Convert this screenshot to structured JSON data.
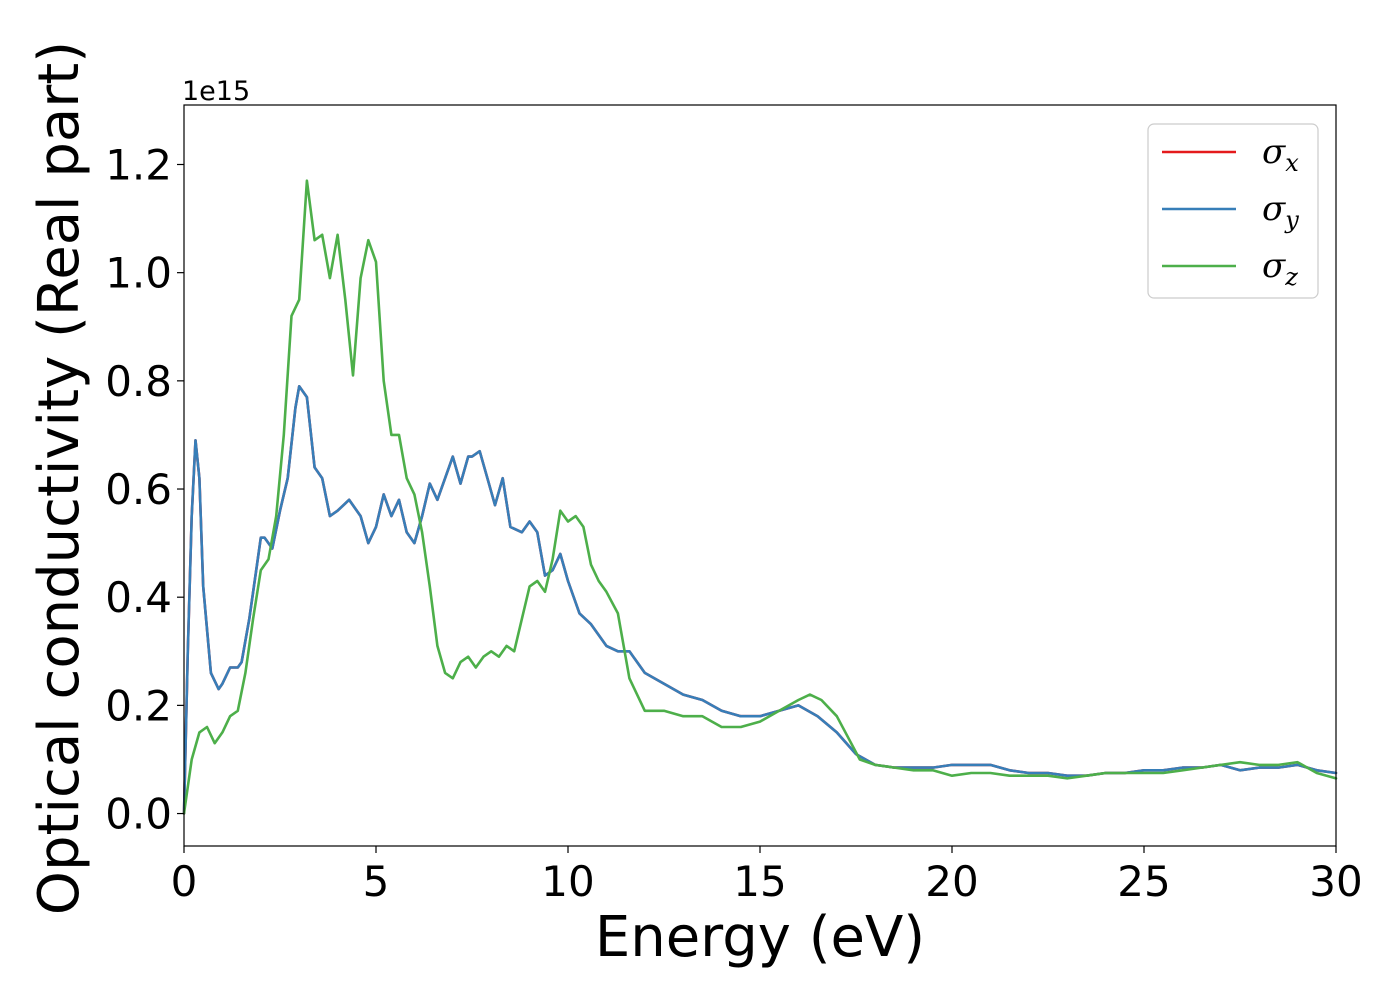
{
  "chart_data": {
    "type": "line",
    "xlabel": "Energy (eV)",
    "ylabel": "Optical conductivity (Real part)",
    "y_offset_label": "1e15",
    "xlim": [
      0,
      30
    ],
    "ylim": [
      -0.06,
      1.31
    ],
    "x_ticks": [
      0,
      5,
      10,
      15,
      20,
      25,
      30
    ],
    "x_tick_labels": [
      "0",
      "5",
      "10",
      "15",
      "20",
      "25",
      "30"
    ],
    "y_ticks": [
      0.0,
      0.2,
      0.4,
      0.6,
      0.8,
      1.0,
      1.2
    ],
    "y_tick_labels": [
      "0.0",
      "0.2",
      "0.4",
      "0.6",
      "0.8",
      "1.0",
      "1.2"
    ],
    "grid": false,
    "legend_position": "top-right",
    "series": [
      {
        "name": "σx",
        "symbol": "σ",
        "subscript": "x",
        "color": "#e41a1c",
        "x": [
          0,
          0.1,
          0.2,
          0.3,
          0.4,
          0.5,
          0.7,
          0.9,
          1.0,
          1.2,
          1.4,
          1.5,
          1.7,
          1.9,
          2.0,
          2.1,
          2.3,
          2.5,
          2.7,
          2.9,
          3.0,
          3.2,
          3.4,
          3.6,
          3.8,
          4.0,
          4.3,
          4.6,
          4.8,
          5.0,
          5.2,
          5.4,
          5.6,
          5.8,
          6.0,
          6.2,
          6.4,
          6.6,
          6.8,
          7.0,
          7.2,
          7.4,
          7.5,
          7.7,
          7.9,
          8.1,
          8.3,
          8.5,
          8.8,
          9.0,
          9.2,
          9.4,
          9.6,
          9.8,
          10.0,
          10.3,
          10.6,
          11.0,
          11.3,
          11.6,
          12.0,
          12.5,
          13.0,
          13.5,
          14.0,
          14.5,
          15.0,
          15.5,
          16.0,
          16.5,
          17.0,
          17.5,
          18.0,
          18.5,
          19.0,
          19.5,
          20.0,
          20.5,
          21.0,
          21.5,
          22.0,
          22.5,
          23.0,
          23.5,
          24.0,
          24.5,
          25.0,
          25.5,
          26.0,
          26.5,
          27.0,
          27.5,
          28.0,
          28.5,
          29.0,
          29.5,
          30.0
        ],
        "values": [
          0.0,
          0.3,
          0.55,
          0.69,
          0.62,
          0.42,
          0.26,
          0.23,
          0.24,
          0.27,
          0.27,
          0.28,
          0.36,
          0.46,
          0.51,
          0.51,
          0.49,
          0.56,
          0.62,
          0.75,
          0.79,
          0.77,
          0.64,
          0.62,
          0.55,
          0.56,
          0.58,
          0.55,
          0.5,
          0.53,
          0.59,
          0.55,
          0.58,
          0.52,
          0.5,
          0.55,
          0.61,
          0.58,
          0.62,
          0.66,
          0.61,
          0.66,
          0.66,
          0.67,
          0.62,
          0.57,
          0.62,
          0.53,
          0.52,
          0.54,
          0.52,
          0.44,
          0.45,
          0.48,
          0.43,
          0.37,
          0.35,
          0.31,
          0.3,
          0.3,
          0.26,
          0.24,
          0.22,
          0.21,
          0.19,
          0.18,
          0.18,
          0.19,
          0.2,
          0.18,
          0.15,
          0.11,
          0.09,
          0.085,
          0.085,
          0.085,
          0.09,
          0.09,
          0.09,
          0.08,
          0.075,
          0.075,
          0.07,
          0.07,
          0.075,
          0.075,
          0.08,
          0.08,
          0.085,
          0.085,
          0.09,
          0.08,
          0.085,
          0.085,
          0.09,
          0.08,
          0.075
        ]
      },
      {
        "name": "σy",
        "symbol": "σ",
        "subscript": "y",
        "color": "#377eb8",
        "x": [
          0,
          0.1,
          0.2,
          0.3,
          0.4,
          0.5,
          0.7,
          0.9,
          1.0,
          1.2,
          1.4,
          1.5,
          1.7,
          1.9,
          2.0,
          2.1,
          2.3,
          2.5,
          2.7,
          2.9,
          3.0,
          3.2,
          3.4,
          3.6,
          3.8,
          4.0,
          4.3,
          4.6,
          4.8,
          5.0,
          5.2,
          5.4,
          5.6,
          5.8,
          6.0,
          6.2,
          6.4,
          6.6,
          6.8,
          7.0,
          7.2,
          7.4,
          7.5,
          7.7,
          7.9,
          8.1,
          8.3,
          8.5,
          8.8,
          9.0,
          9.2,
          9.4,
          9.6,
          9.8,
          10.0,
          10.3,
          10.6,
          11.0,
          11.3,
          11.6,
          12.0,
          12.5,
          13.0,
          13.5,
          14.0,
          14.5,
          15.0,
          15.5,
          16.0,
          16.5,
          17.0,
          17.5,
          18.0,
          18.5,
          19.0,
          19.5,
          20.0,
          20.5,
          21.0,
          21.5,
          22.0,
          22.5,
          23.0,
          23.5,
          24.0,
          24.5,
          25.0,
          25.5,
          26.0,
          26.5,
          27.0,
          27.5,
          28.0,
          28.5,
          29.0,
          29.5,
          30.0
        ],
        "values": [
          0.0,
          0.3,
          0.55,
          0.69,
          0.62,
          0.42,
          0.26,
          0.23,
          0.24,
          0.27,
          0.27,
          0.28,
          0.36,
          0.46,
          0.51,
          0.51,
          0.49,
          0.56,
          0.62,
          0.75,
          0.79,
          0.77,
          0.64,
          0.62,
          0.55,
          0.56,
          0.58,
          0.55,
          0.5,
          0.53,
          0.59,
          0.55,
          0.58,
          0.52,
          0.5,
          0.55,
          0.61,
          0.58,
          0.62,
          0.66,
          0.61,
          0.66,
          0.66,
          0.67,
          0.62,
          0.57,
          0.62,
          0.53,
          0.52,
          0.54,
          0.52,
          0.44,
          0.45,
          0.48,
          0.43,
          0.37,
          0.35,
          0.31,
          0.3,
          0.3,
          0.26,
          0.24,
          0.22,
          0.21,
          0.19,
          0.18,
          0.18,
          0.19,
          0.2,
          0.18,
          0.15,
          0.11,
          0.09,
          0.085,
          0.085,
          0.085,
          0.09,
          0.09,
          0.09,
          0.08,
          0.075,
          0.075,
          0.07,
          0.07,
          0.075,
          0.075,
          0.08,
          0.08,
          0.085,
          0.085,
          0.09,
          0.08,
          0.085,
          0.085,
          0.09,
          0.08,
          0.075
        ]
      },
      {
        "name": "σz",
        "symbol": "σ",
        "subscript": "z",
        "color": "#4daf4a",
        "x": [
          0,
          0.2,
          0.4,
          0.6,
          0.8,
          1.0,
          1.2,
          1.4,
          1.6,
          1.8,
          2.0,
          2.2,
          2.4,
          2.6,
          2.8,
          3.0,
          3.2,
          3.4,
          3.6,
          3.8,
          4.0,
          4.2,
          4.4,
          4.6,
          4.8,
          5.0,
          5.2,
          5.4,
          5.6,
          5.8,
          6.0,
          6.2,
          6.4,
          6.6,
          6.8,
          7.0,
          7.2,
          7.4,
          7.6,
          7.8,
          8.0,
          8.2,
          8.4,
          8.6,
          8.8,
          9.0,
          9.2,
          9.4,
          9.6,
          9.8,
          10.0,
          10.2,
          10.4,
          10.6,
          10.8,
          11.0,
          11.3,
          11.6,
          12.0,
          12.5,
          13.0,
          13.5,
          14.0,
          14.5,
          15.0,
          15.5,
          16.0,
          16.3,
          16.6,
          17.0,
          17.3,
          17.6,
          18.0,
          18.5,
          19.0,
          19.5,
          20.0,
          20.5,
          21.0,
          21.5,
          22.0,
          22.5,
          23.0,
          23.5,
          24.0,
          24.5,
          25.0,
          25.5,
          26.0,
          26.5,
          27.0,
          27.5,
          28.0,
          28.5,
          29.0,
          29.5,
          30.0
        ],
        "values": [
          0.0,
          0.1,
          0.15,
          0.16,
          0.13,
          0.15,
          0.18,
          0.19,
          0.26,
          0.36,
          0.45,
          0.47,
          0.55,
          0.7,
          0.92,
          0.95,
          1.17,
          1.06,
          1.07,
          0.99,
          1.07,
          0.95,
          0.81,
          0.99,
          1.06,
          1.02,
          0.8,
          0.7,
          0.7,
          0.62,
          0.59,
          0.52,
          0.42,
          0.31,
          0.26,
          0.25,
          0.28,
          0.29,
          0.27,
          0.29,
          0.3,
          0.29,
          0.31,
          0.3,
          0.36,
          0.42,
          0.43,
          0.41,
          0.47,
          0.56,
          0.54,
          0.55,
          0.53,
          0.46,
          0.43,
          0.41,
          0.37,
          0.25,
          0.19,
          0.19,
          0.18,
          0.18,
          0.16,
          0.16,
          0.17,
          0.19,
          0.21,
          0.22,
          0.21,
          0.18,
          0.14,
          0.1,
          0.09,
          0.085,
          0.08,
          0.08,
          0.07,
          0.075,
          0.075,
          0.07,
          0.07,
          0.07,
          0.065,
          0.07,
          0.075,
          0.075,
          0.075,
          0.075,
          0.08,
          0.085,
          0.09,
          0.095,
          0.09,
          0.09,
          0.095,
          0.075,
          0.065
        ]
      }
    ]
  }
}
